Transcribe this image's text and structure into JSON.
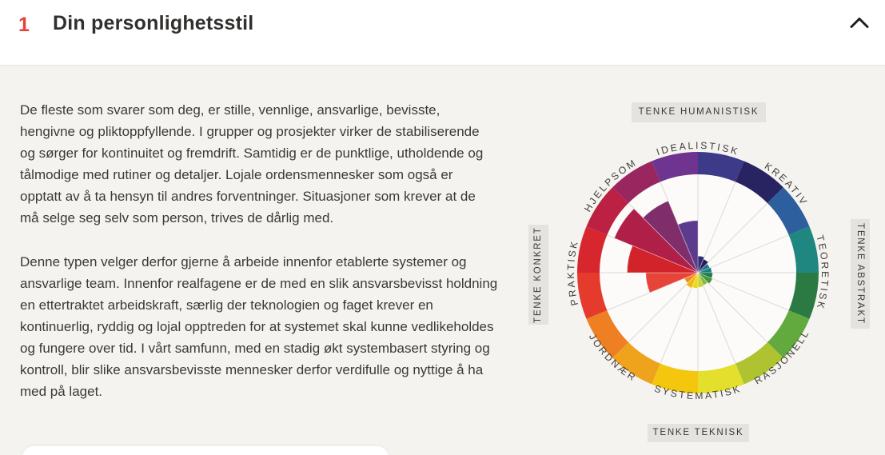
{
  "header": {
    "number": "1",
    "title": "Din personlighetsstil",
    "collapse_icon": "chevron-up"
  },
  "body": {
    "paragraph1": "De fleste som svarer som deg, er stille, vennlige, ansvarlige, bevisste, hengivne og pliktoppfyllende. I grupper og prosjekter virker de stabiliserende og sørger for kontinuitet og fremdrift. Samtidig er de punktlige, utholdende og tålmodige med rutiner og detaljer. Lojale ordensmennesker som også er opptatt av å ta hensyn til andres forventninger. Situasjoner som krever at de må selge seg selv som person, trives de dårlig med.",
    "paragraph2": "Denne typen velger derfor gjerne å arbeide innenfor etablerte systemer og ansvarlige team. Innenfor realfagene er de med en slik ansvarsbevisst holdning en ettertraktet arbeidskraft, særlig der teknologien og faget krever en kontinuerlig, ryddig og lojal opptreden for at systemet skal kunne vedlikeholdes og fungere over tid. I vårt samfunn, med en stadig økt systembasert styring og kontroll, blir slike ansvarsbevisste mennesker derfor verdifulle og nyttige å ha med på laget."
  },
  "chart_data": {
    "type": "polar-rose",
    "description": "Personality style wheel: 16 sectors of 22.5 degrees, angles measured clockwise from top. Petal value = fraction of inner-circle radius.",
    "geometry": {
      "outer_radius": 151,
      "inner_radius": 123,
      "label_radius_cw": 155,
      "label_radius_ccw": 158
    },
    "colors": {
      "inner_circle": "#fcfbf9",
      "gridline": "#dcdad6",
      "label_text": "#413f3c"
    },
    "axis_labels": {
      "top": "TENKE HUMANISTISK",
      "right": "TENKE ABSTRAKT",
      "bottom": "TENKE TEKNISK",
      "left": "TENKE KONKRET"
    },
    "style_labels": [
      {
        "label": "IDEALISTISK",
        "angle": 0
      },
      {
        "label": "KREATIV",
        "angle": 45
      },
      {
        "label": "TEORETISK",
        "angle": 90
      },
      {
        "label": "RASJONELL",
        "angle": 135
      },
      {
        "label": "SYSTEMATISK",
        "angle": 180
      },
      {
        "label": "JORDNÆR",
        "angle": 225
      },
      {
        "label": "PRAKTISK",
        "angle": 270
      },
      {
        "label": "HJELPSOM",
        "angle": 315
      }
    ],
    "segments": [
      {
        "start": 0,
        "end": 22.5,
        "ring_color": "#3e3a8a",
        "petal_color": "#2f2b74",
        "value": 0.17
      },
      {
        "start": 22.5,
        "end": 45,
        "ring_color": "#282361",
        "petal_color": "#232057",
        "value": 0.15
      },
      {
        "start": 45,
        "end": 67.5,
        "ring_color": "#2d5e9d",
        "petal_color": "#25708d",
        "value": 0.13
      },
      {
        "start": 67.5,
        "end": 90,
        "ring_color": "#1f8780",
        "petal_color": "#17807f",
        "value": 0.14
      },
      {
        "start": 90,
        "end": 112.5,
        "ring_color": "#2b7a44",
        "petal_color": "#1e7b4b",
        "value": 0.15
      },
      {
        "start": 112.5,
        "end": 135,
        "ring_color": "#62a93e",
        "petal_color": "#47953c",
        "value": 0.16
      },
      {
        "start": 135,
        "end": 157.5,
        "ring_color": "#aec32f",
        "petal_color": "#8cb83e",
        "value": 0.14
      },
      {
        "start": 157.5,
        "end": 180,
        "ring_color": "#e3df2c",
        "petal_color": "#c8d232",
        "value": 0.15
      },
      {
        "start": 180,
        "end": 202.5,
        "ring_color": "#f4c70e",
        "petal_color": "#ecd81f",
        "value": 0.16
      },
      {
        "start": 202.5,
        "end": 225,
        "ring_color": "#efa31d",
        "petal_color": "#f2b614",
        "value": 0.17
      },
      {
        "start": 225,
        "end": 247.5,
        "ring_color": "#ee7f23",
        "petal_color": "#f08c1d",
        "value": 0.15
      },
      {
        "start": 247.5,
        "end": 270,
        "ring_color": "#e43b2d",
        "petal_color": "#e64438",
        "value": 0.53
      },
      {
        "start": 270,
        "end": 292.5,
        "ring_color": "#d8262e",
        "petal_color": "#d2232b",
        "value": 0.72
      },
      {
        "start": 292.5,
        "end": 315,
        "ring_color": "#bc2042",
        "petal_color": "#b01f48",
        "value": 0.92
      },
      {
        "start": 315,
        "end": 337.5,
        "ring_color": "#99265e",
        "petal_color": "#802e6b",
        "value": 0.79
      },
      {
        "start": 337.5,
        "end": 360,
        "ring_color": "#6f3390",
        "petal_color": "#5c3b8e",
        "value": 0.53
      }
    ]
  }
}
